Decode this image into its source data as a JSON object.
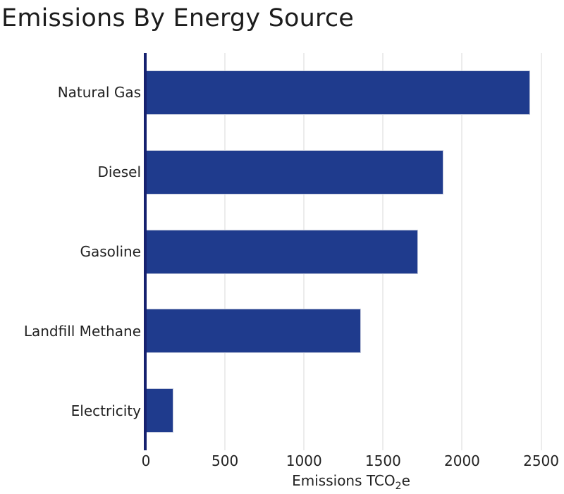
{
  "chart_data": {
    "type": "bar",
    "orientation": "horizontal",
    "title": "Emissions By Energy Source",
    "categories": [
      "Natural Gas",
      "Diesel",
      "Gasoline",
      "Landfill Methane",
      "Electricity"
    ],
    "values": [
      2430,
      1880,
      1720,
      1360,
      175
    ],
    "xlabel": "Emissions TCO2e",
    "xlabel_parts": {
      "prefix": "Emissions TCO",
      "sub": "2",
      "suffix": "e"
    },
    "xticks": [
      0,
      500,
      1000,
      1500,
      2000,
      2500
    ],
    "xtick_labels": [
      "0",
      "500",
      "1000",
      "1500",
      "2000",
      "2500"
    ],
    "xlim": [
      0,
      2600
    ],
    "ylabel": "",
    "grid": true,
    "legend": false,
    "colors": {
      "bar": "#1f3b8d",
      "bar_border": "#c6cbdd",
      "axis_line": "#16216f",
      "gridline": "#ececec",
      "text": "#222222",
      "title_text": "#1c1c1c",
      "background": "#ffffff"
    }
  }
}
